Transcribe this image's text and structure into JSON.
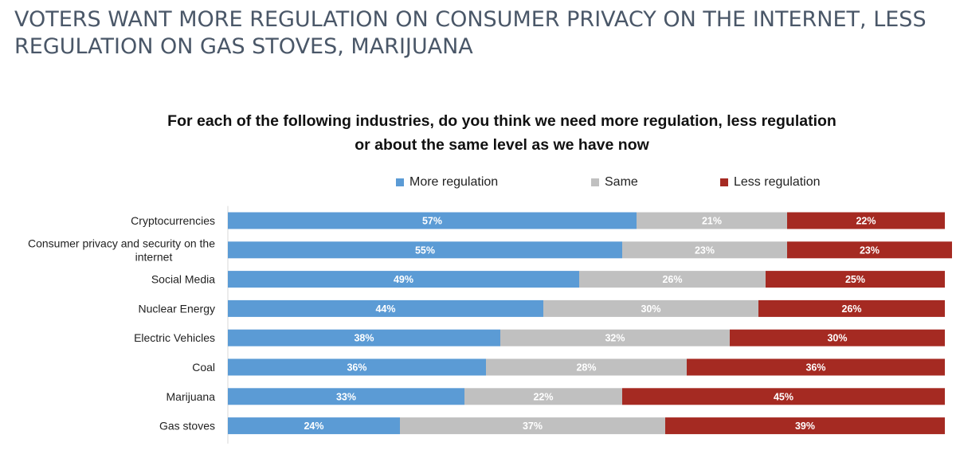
{
  "headline": "VOTERS WANT MORE REGULATION ON CONSUMER PRIVACY ON THE INTERNET, LESS REGULATION ON GAS STOVES, MARIJUANA",
  "question_lines": [
    "For each of the following industries, do you think we need more regulation, less regulation",
    "or about the same level as we have now"
  ],
  "legend": [
    {
      "label": "More regulation",
      "color": "#5b9bd5"
    },
    {
      "label": "Same",
      "color": "#c0c0c0"
    },
    {
      "label": "Less regulation",
      "color": "#a52a22"
    }
  ],
  "chart_data": {
    "type": "bar",
    "orientation": "horizontal",
    "stacked": true,
    "percent": true,
    "title": "For each of the following industries, do you think we need more regulation, less regulation or about the same level as we have now",
    "xlabel": "",
    "ylabel": "",
    "xlim": [
      0,
      100
    ],
    "grid": false,
    "legend_position": "top",
    "categories": [
      [
        "Cryptocurrencies"
      ],
      [
        "Consumer privacy and security on the",
        "internet"
      ],
      [
        "Social Media"
      ],
      [
        "Nuclear Energy"
      ],
      [
        "Electric Vehicles"
      ],
      [
        "Coal"
      ],
      [
        "Marijuana"
      ],
      [
        "Gas stoves"
      ]
    ],
    "series": [
      {
        "name": "More regulation",
        "color": "#5b9bd5",
        "values": [
          57,
          55,
          49,
          44,
          38,
          36,
          33,
          24
        ]
      },
      {
        "name": "Same",
        "color": "#c0c0c0",
        "values": [
          21,
          23,
          26,
          30,
          32,
          28,
          22,
          37
        ]
      },
      {
        "name": "Less regulation",
        "color": "#a52a22",
        "values": [
          22,
          23,
          25,
          26,
          30,
          36,
          45,
          39
        ]
      }
    ]
  }
}
